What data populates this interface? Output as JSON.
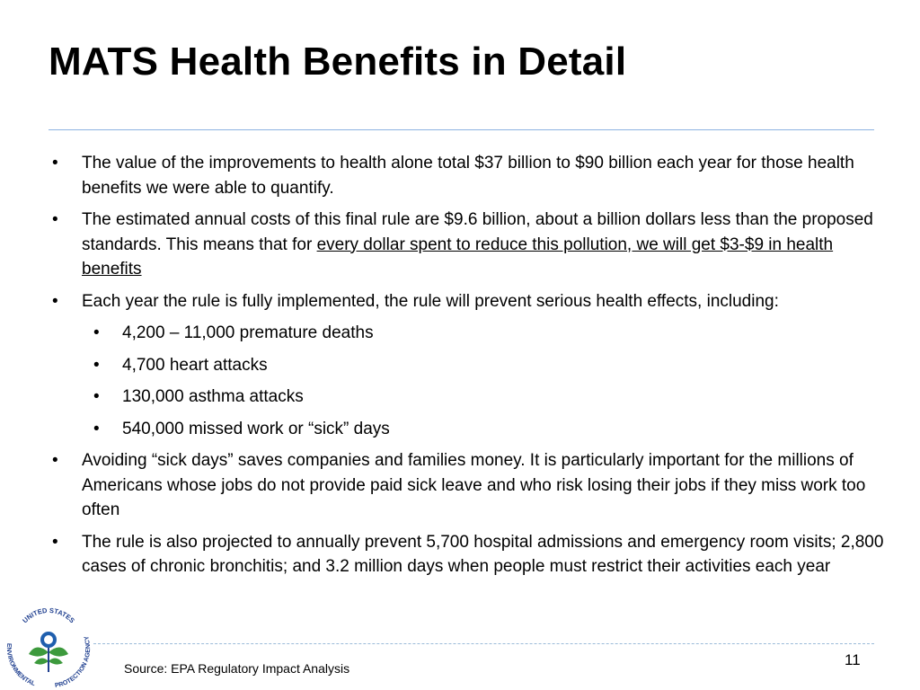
{
  "title": "MATS Health Benefits in Detail",
  "bullets": {
    "b1": "The value of the improvements to health alone total $37 billion to $90 billion each year for those health benefits we were able to quantify.",
    "b2_pre": "The estimated annual costs of this final rule are $9.6 billion, about a billion dollars less than the proposed standards. This means that for ",
    "b2_underlined": "every dollar spent to reduce this pollution, we will get $3-$9 in health benefits",
    "b3": "Each year the rule is fully implemented, the rule will prevent serious health effects, including:",
    "sub1": "4,200 – 11,000 premature deaths",
    "sub2": "4,700 heart attacks",
    "sub3": "130,000 asthma attacks",
    "sub4": "540,000 missed work or “sick” days",
    "b4": "Avoiding “sick days” saves companies and families money. It is particularly important for the millions of Americans whose jobs do not provide paid sick leave and who risk losing their jobs if they miss work too often",
    "b5": "The rule is also projected to annually prevent 5,700 hospital admissions and emergency room visits; 2,800 cases of chronic bronchitis; and 3.2 million days when people must restrict their activities each year"
  },
  "footer": {
    "source": "Source: EPA Regulatory Impact Analysis",
    "page_number": "11"
  },
  "logo": {
    "top_text": "UNITED STATES",
    "left_text": "ENVIRONMENTAL",
    "right_text": "PROTECTION AGENCY",
    "colors": {
      "text": "#1f3f8f",
      "leaf": "#3d9a3d",
      "flower": "#1f5fae"
    }
  }
}
